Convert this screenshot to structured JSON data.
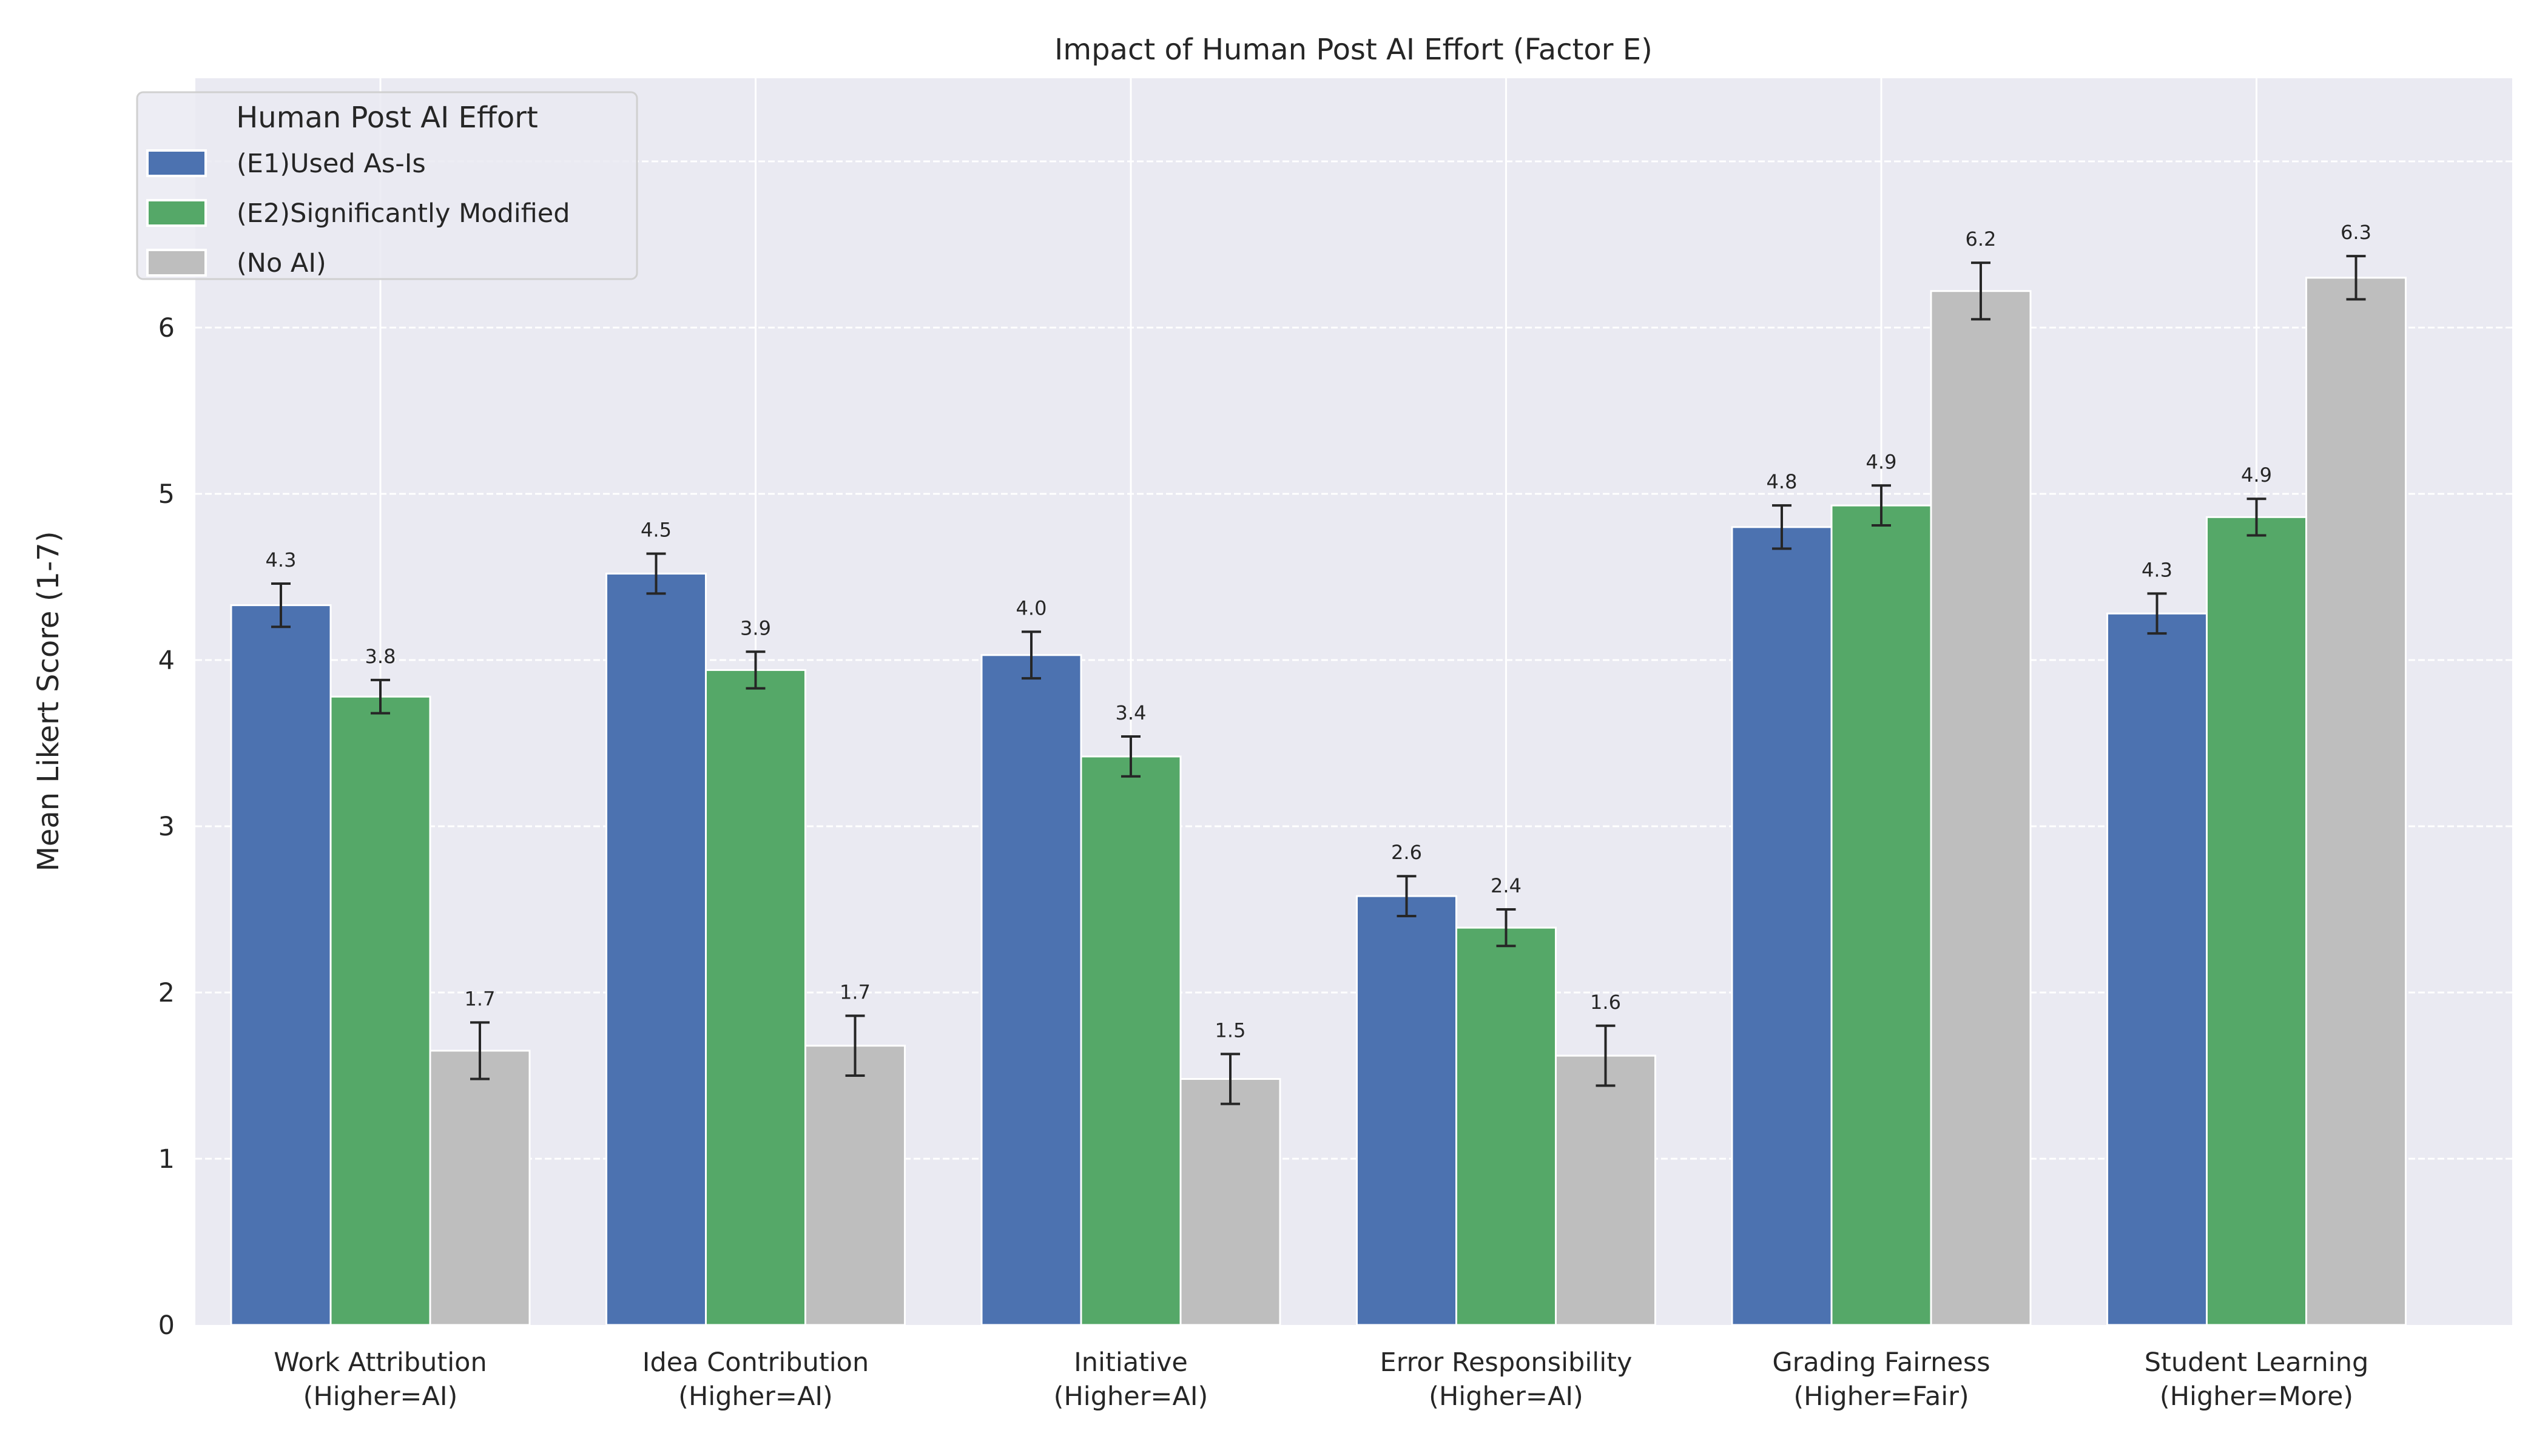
{
  "chart_data": {
    "type": "bar",
    "title": "Impact of Human Post AI Effort (Factor E)",
    "xlabel": "",
    "ylabel": "Mean Likert Score (1-7)",
    "ylim": [
      0,
      7.5
    ],
    "yticks": [
      "0",
      "1",
      "2",
      "3",
      "4",
      "5",
      "6",
      "7"
    ],
    "grid": true,
    "legend": {
      "title": "Human Post AI Effort",
      "placement": "top-left"
    },
    "categories": [
      [
        "Work Attribution",
        "(Higher=AI)"
      ],
      [
        "Idea Contribution",
        "(Higher=AI)"
      ],
      [
        "Initiative",
        "(Higher=AI)"
      ],
      [
        "Error Responsibility",
        "(Higher=AI)"
      ],
      [
        "Grading Fairness",
        "(Higher=Fair)"
      ],
      [
        "Student Learning",
        "(Higher=More)"
      ]
    ],
    "series": [
      {
        "name": "(E1)Used As-Is",
        "color": "#4C72B0",
        "values": [
          4.33,
          4.52,
          4.03,
          2.58,
          4.8,
          4.28
        ],
        "errors": [
          0.13,
          0.12,
          0.14,
          0.12,
          0.13,
          0.12
        ],
        "labels": [
          "4.3",
          "4.5",
          "4.0",
          "2.6",
          "4.8",
          "4.3"
        ]
      },
      {
        "name": "(E2)Significantly Modified",
        "color": "#55A868",
        "values": [
          3.78,
          3.94,
          3.42,
          2.39,
          4.93,
          4.86
        ],
        "errors": [
          0.1,
          0.11,
          0.12,
          0.11,
          0.12,
          0.11
        ],
        "labels": [
          "3.8",
          "3.9",
          "3.4",
          "2.4",
          "4.9",
          "4.9"
        ]
      },
      {
        "name": "(No AI)",
        "color": "#BEBEBE",
        "values": [
          1.65,
          1.68,
          1.48,
          1.62,
          6.22,
          6.3
        ],
        "errors": [
          0.17,
          0.18,
          0.15,
          0.18,
          0.17,
          0.13
        ],
        "labels": [
          "1.7",
          "1.7",
          "1.5",
          "1.6",
          "6.2",
          "6.3"
        ]
      }
    ]
  }
}
